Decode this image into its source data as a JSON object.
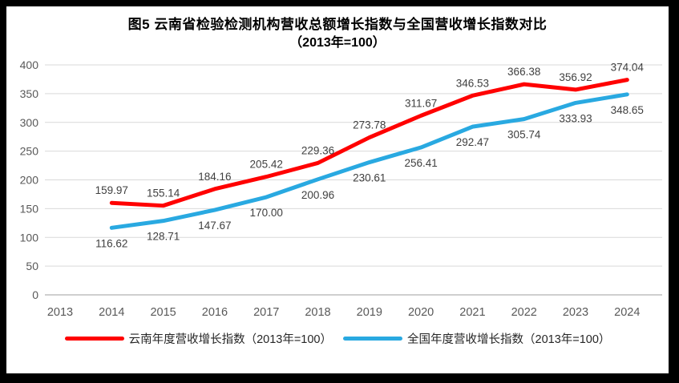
{
  "title": {
    "line1": "图5  云南省检验检测机构营收总额增长指数与全国营收增长指数对比",
    "line2": "（2013年=100）"
  },
  "chart_data": {
    "type": "line",
    "categories": [
      "2013",
      "2014",
      "2015",
      "2016",
      "2017",
      "2018",
      "2019",
      "2020",
      "2021",
      "2022",
      "2023",
      "2024"
    ],
    "series": [
      {
        "id": "yunnan",
        "name": "云南年度营收增长指数（2013年=100）",
        "color": "#FF0000",
        "label_position": "above",
        "values": [
          null,
          159.97,
          155.14,
          184.16,
          205.42,
          229.36,
          273.78,
          311.67,
          346.53,
          366.38,
          356.92,
          374.04
        ]
      },
      {
        "id": "national",
        "name": "全国年度营收增长指数（2013年=100）",
        "color": "#29A9E1",
        "label_position": "below",
        "values": [
          null,
          116.62,
          128.71,
          147.67,
          170.0,
          200.96,
          230.61,
          256.41,
          292.47,
          305.74,
          333.93,
          348.65
        ]
      }
    ],
    "title": "图5  云南省检验检测机构营收总额增长指数与全国营收增长指数对比（2013年=100）",
    "xlabel": "",
    "ylabel": "",
    "ylim": [
      0,
      400
    ],
    "ytick_step": 50,
    "grid": true,
    "legend_position": "bottom"
  },
  "legend": {
    "items": [
      {
        "label": "云南年度营收增长指数（2013年=100）",
        "color": "#FF0000"
      },
      {
        "label": "全国年度营收增长指数（2013年=100）",
        "color": "#29A9E1"
      }
    ]
  },
  "colors": {
    "frame": "#000000",
    "background": "#ffffff",
    "gridline": "#D9D9D9",
    "axis_line": "#BFBFBF",
    "tick_text": "#595959",
    "data_label": "#404040"
  }
}
